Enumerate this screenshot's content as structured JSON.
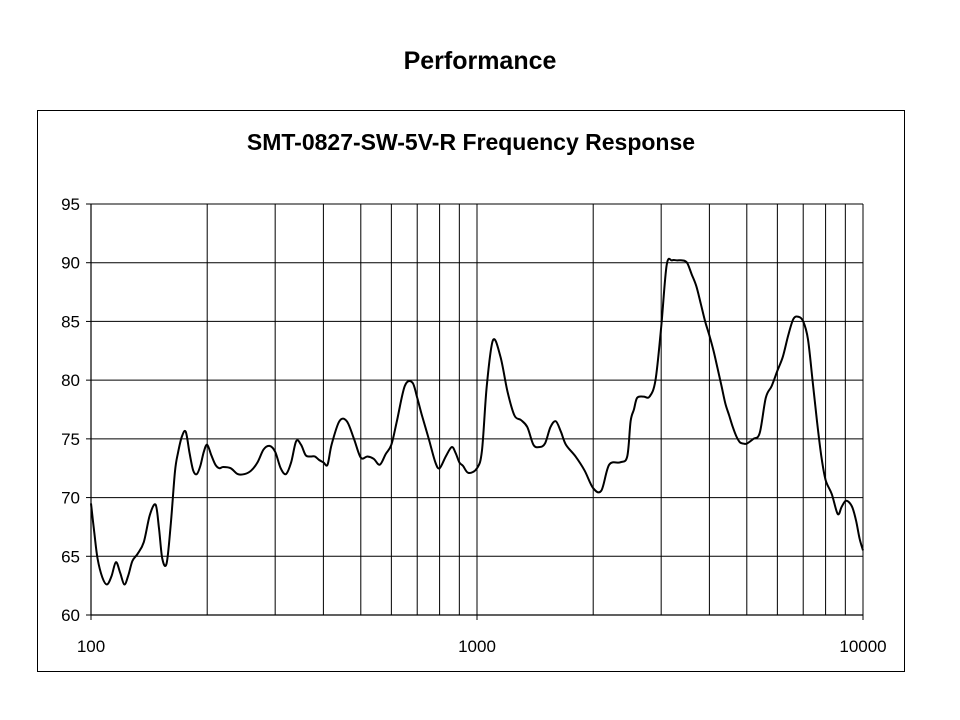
{
  "page": {
    "title": "Performance"
  },
  "chart_data": {
    "type": "line",
    "title": "SMT-0827-SW-5V-R Frequency Response",
    "xlabel": "",
    "ylabel": "",
    "x_scale": "log",
    "xlim": [
      100,
      10000
    ],
    "ylim": [
      60,
      95
    ],
    "x_ticks": [
      100,
      1000,
      10000
    ],
    "x_tick_labels": [
      "100",
      "1000",
      "10000"
    ],
    "y_ticks": [
      60,
      65,
      70,
      75,
      80,
      85,
      90,
      95
    ],
    "y_tick_labels": [
      "60",
      "65",
      "70",
      "75",
      "80",
      "85",
      "90",
      "95"
    ],
    "grid": true,
    "legend": "none",
    "line_color": "#000000",
    "series": [
      {
        "x": [
          100,
          102,
          104,
          107,
          110,
          113,
          116,
          119,
          122,
          125,
          128,
          132,
          137,
          142,
          147,
          150,
          153,
          157,
          161,
          165,
          168,
          172,
          176,
          180,
          184,
          188,
          192,
          196,
          200,
          205,
          210,
          215,
          220,
          230,
          240,
          250,
          260,
          270,
          280,
          290,
          300,
          310,
          320,
          330,
          340,
          350,
          360,
          370,
          380,
          390,
          400,
          410,
          420,
          440,
          460,
          480,
          500,
          520,
          540,
          560,
          580,
          600,
          620,
          650,
          680,
          700,
          720,
          750,
          780,
          800,
          830,
          860,
          880,
          900,
          920,
          950,
          1000,
          1030,
          1060,
          1100,
          1150,
          1200,
          1250,
          1300,
          1350,
          1400,
          1450,
          1500,
          1550,
          1600,
          1650,
          1700,
          1800,
          1900,
          2000,
          2100,
          2200,
          2350,
          2450,
          2500,
          2550,
          2600,
          2700,
          2800,
          2900,
          3000,
          3100,
          3200,
          3300,
          3400,
          3500,
          3600,
          3700,
          3800,
          3900,
          4000,
          4100,
          4200,
          4300,
          4400,
          4500,
          4600,
          4700,
          4800,
          4900,
          5000,
          5200,
          5400,
          5600,
          5800,
          6000,
          6200,
          6400,
          6600,
          6800,
          7000,
          7200,
          7400,
          7600,
          7800,
          8000,
          8300,
          8600,
          8800,
          9000,
          9200,
          9400,
          9600,
          9800,
          10000
        ],
        "y": [
          69.5,
          67,
          64.8,
          63.2,
          62.6,
          63.3,
          64.5,
          63.6,
          62.6,
          63.4,
          64.6,
          65.2,
          66.2,
          68.5,
          69.4,
          67.4,
          64.8,
          64.4,
          67.8,
          72.2,
          73.8,
          75.2,
          75.6,
          73.8,
          72.3,
          72,
          72.7,
          73.9,
          74.5,
          73.6,
          72.8,
          72.5,
          72.6,
          72.5,
          72,
          72,
          72.3,
          73,
          74.1,
          74.4,
          73.9,
          72.5,
          72,
          73,
          74.8,
          74.5,
          73.6,
          73.5,
          73.5,
          73.2,
          73,
          72.8,
          74.5,
          76.5,
          76.5,
          75,
          73.4,
          73.5,
          73.3,
          72.8,
          73.7,
          74.5,
          76.5,
          79.5,
          79.8,
          78.5,
          77,
          75,
          73,
          72.5,
          73.5,
          74.3,
          73.8,
          73,
          72.7,
          72.1,
          72.5,
          74,
          79.5,
          83.4,
          82,
          79,
          77,
          76.6,
          76,
          74.5,
          74.3,
          74.6,
          76,
          76.5,
          75.6,
          74.5,
          73.5,
          72.3,
          70.8,
          70.6,
          72.8,
          73,
          73.5,
          76.5,
          77.5,
          78.5,
          78.6,
          78.6,
          80,
          84.5,
          89.8,
          90.2,
          90.2,
          90.2,
          90,
          89,
          88,
          86.5,
          85,
          83.8,
          82.5,
          81,
          79.5,
          78,
          77,
          76,
          75.2,
          74.7,
          74.6,
          74.6,
          75,
          75.5,
          78.5,
          79.5,
          80.8,
          82,
          83.8,
          85.2,
          85.4,
          85,
          83.5,
          80,
          76.5,
          73.5,
          71.5,
          70.3,
          68.6,
          69.2,
          69.7,
          69.6,
          69.1,
          68,
          66.5,
          65.5
        ]
      }
    ]
  }
}
